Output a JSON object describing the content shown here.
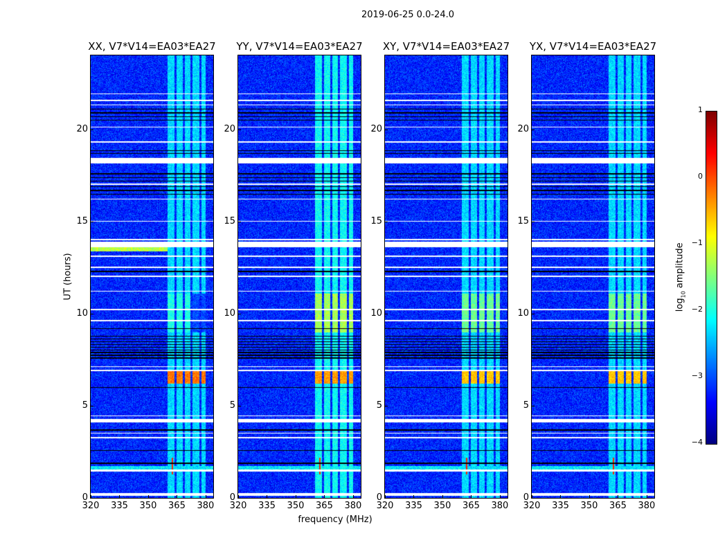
{
  "chart_data": {
    "type": "heatmap",
    "title": "2019-06-25 0.0-24.0",
    "xlabel": "frequency (MHz)",
    "ylabel": "UT (hours)",
    "xlim": [
      320,
      384
    ],
    "ylim": [
      0,
      24
    ],
    "xticks": [
      320,
      335,
      350,
      365,
      380
    ],
    "yticks": [
      0,
      5,
      10,
      15,
      20
    ],
    "panels": [
      {
        "title": "XX, V7*V14=EA03*EA27",
        "band_levels": {
          "base": -2.3,
          "h9_11": -2.0,
          "h6_7": -0.2
        }
      },
      {
        "title": "YY, V7*V14=EA03*EA27",
        "band_levels": {
          "base": -2.1,
          "h9_11": -1.3,
          "h6_7": -0.4
        }
      },
      {
        "title": "XY, V7*V14=EA03*EA27",
        "band_levels": {
          "base": -2.3,
          "h9_11": -1.6,
          "h6_7": -0.6
        }
      },
      {
        "title": "YX, V7*V14=EA03*EA27",
        "band_levels": {
          "base": -2.3,
          "h9_11": -1.6,
          "h6_7": -0.6
        }
      }
    ],
    "background_level": -3.2,
    "rfi_channels_mhz": [
      [
        360,
        363.5
      ],
      [
        364.5,
        368
      ],
      [
        369,
        372
      ],
      [
        373,
        376.5
      ],
      [
        377.5,
        380
      ]
    ],
    "flagged_hours": [
      [
        0.15,
        0.3
      ],
      [
        1.45,
        1.55
      ],
      [
        3.25,
        3.32
      ],
      [
        3.5,
        3.56
      ],
      [
        4.1,
        4.3
      ],
      [
        4.45,
        4.5
      ],
      [
        6.9,
        6.96
      ],
      [
        7.1,
        7.16
      ],
      [
        9.6,
        9.66
      ],
      [
        10.2,
        10.26
      ],
      [
        11.2,
        11.26
      ],
      [
        12.0,
        12.06
      ],
      [
        12.5,
        12.56
      ],
      [
        13.1,
        13.16
      ],
      [
        13.6,
        13.9
      ],
      [
        14.0,
        14.06
      ],
      [
        15.0,
        15.06
      ],
      [
        16.2,
        16.26
      ],
      [
        17.0,
        17.06
      ],
      [
        18.15,
        18.45
      ],
      [
        19.3,
        19.36
      ],
      [
        20.1,
        20.16
      ],
      [
        21.3,
        21.36
      ],
      [
        21.55,
        21.6
      ],
      [
        21.9,
        21.95
      ]
    ],
    "dark_line_hours": [
      1.9,
      2.6,
      3.7,
      6.0,
      7.6,
      7.75,
      7.9,
      8.05,
      8.2,
      8.35,
      8.5,
      8.65,
      8.8,
      9.2,
      12.3,
      16.5,
      16.7,
      16.9,
      17.2,
      17.4,
      17.6,
      18.7,
      18.85,
      20.5,
      20.7,
      20.9,
      21.1
    ],
    "colorbar": {
      "label": "log10 amplitude",
      "range": [
        -4,
        1
      ],
      "ticks": [
        1,
        0,
        -1,
        -2,
        -3,
        -4
      ],
      "tick_labels": [
        "1",
        "0",
        "−1",
        "−2",
        "−3",
        "−4"
      ],
      "colormap": "jet"
    }
  }
}
